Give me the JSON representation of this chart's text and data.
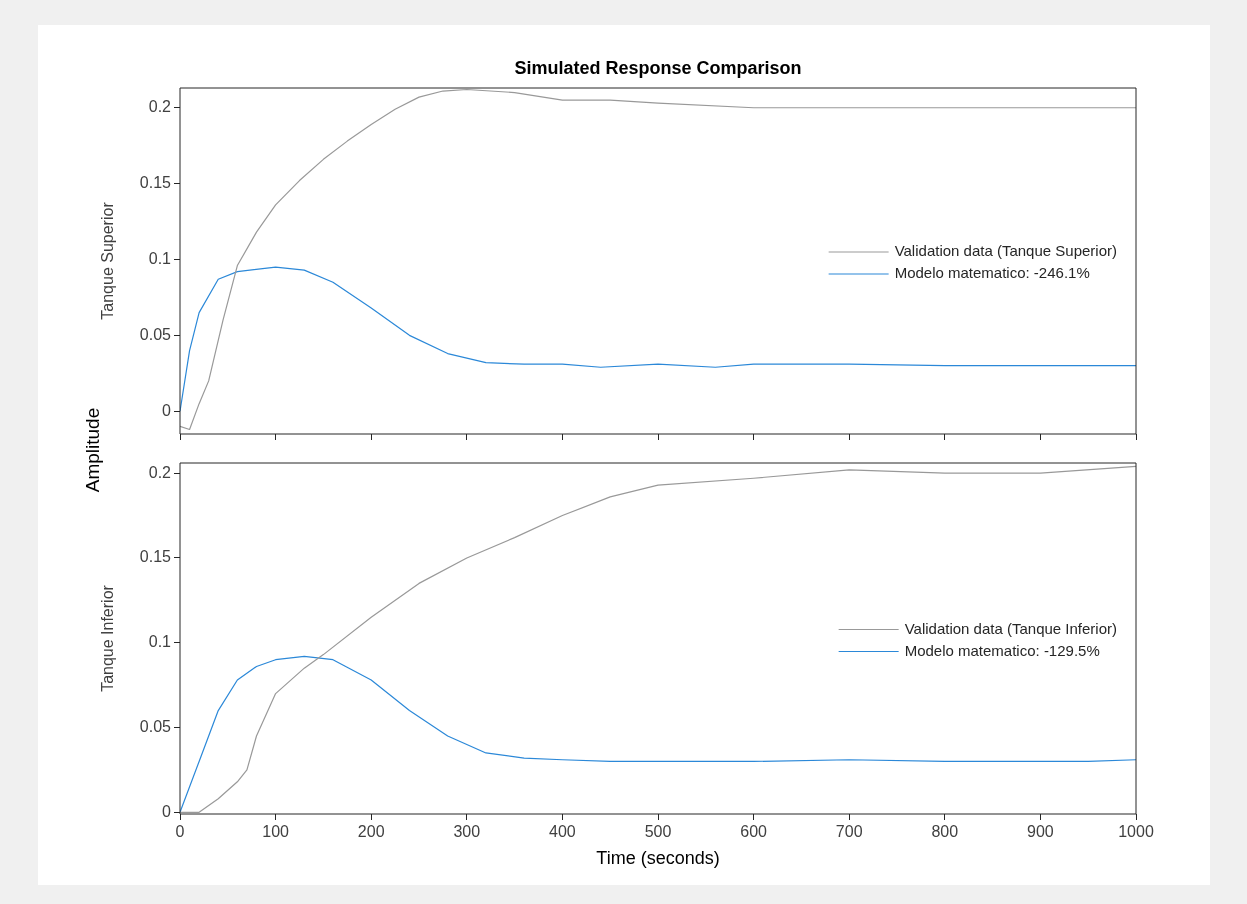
{
  "chart_data": [
    {
      "type": "line",
      "title": "Simulated Response Comparison",
      "ylabel": "Tanque Superior",
      "annotations": [
        "Amplitude"
      ],
      "xlim": [
        0,
        1000
      ],
      "xticks": [
        0,
        100,
        200,
        300,
        400,
        500,
        600,
        700,
        800,
        900,
        1000
      ],
      "ylim": [
        -0.015,
        0.213
      ],
      "yticks": [
        0,
        0.05,
        0.1,
        0.15,
        0.2
      ],
      "tick_labels": "y",
      "grid": false,
      "legend": "right",
      "series": [
        {
          "name": "Validation data (Tanque Superior)",
          "color": "#999999",
          "x": [
            0,
            10,
            20,
            30,
            45,
            60,
            80,
            100,
            125,
            150,
            175,
            200,
            225,
            250,
            275,
            300,
            350,
            400,
            450,
            500,
            600,
            700,
            800,
            900,
            1000
          ],
          "values": [
            -0.01,
            -0.012,
            0.005,
            0.02,
            0.06,
            0.096,
            0.118,
            0.136,
            0.152,
            0.166,
            0.178,
            0.189,
            0.199,
            0.207,
            0.211,
            0.212,
            0.21,
            0.205,
            0.205,
            0.203,
            0.2,
            0.2,
            0.2,
            0.2,
            0.2
          ]
        },
        {
          "name": "Modelo matematico: -246.1%",
          "color": "#2b88d8",
          "x": [
            0,
            10,
            20,
            40,
            60,
            100,
            130,
            160,
            200,
            240,
            280,
            320,
            360,
            400,
            440,
            500,
            560,
            600,
            700,
            800,
            1000
          ],
          "values": [
            0,
            0.04,
            0.065,
            0.087,
            0.092,
            0.095,
            0.093,
            0.085,
            0.068,
            0.05,
            0.038,
            0.032,
            0.031,
            0.031,
            0.029,
            0.031,
            0.029,
            0.031,
            0.031,
            0.03,
            0.03
          ]
        }
      ]
    },
    {
      "type": "line",
      "xlabel": "Time (seconds)",
      "ylabel": "Tanque Inferior",
      "xlim": [
        0,
        1000
      ],
      "xticks": [
        0,
        100,
        200,
        300,
        400,
        500,
        600,
        700,
        800,
        900,
        1000
      ],
      "ylim": [
        -0.001,
        0.206
      ],
      "yticks": [
        0,
        0.05,
        0.1,
        0.15,
        0.2
      ],
      "grid": false,
      "legend": "right",
      "series": [
        {
          "name": "Validation data (Tanque Inferior)",
          "color": "#999999",
          "x": [
            0,
            20,
            40,
            60,
            70,
            80,
            100,
            130,
            150,
            200,
            250,
            300,
            350,
            400,
            450,
            500,
            600,
            700,
            800,
            900,
            1000
          ],
          "values": [
            0,
            0,
            0.008,
            0.018,
            0.025,
            0.045,
            0.07,
            0.085,
            0.093,
            0.115,
            0.135,
            0.15,
            0.162,
            0.175,
            0.186,
            0.193,
            0.197,
            0.202,
            0.2,
            0.2,
            0.204
          ]
        },
        {
          "name": "Modelo matematico: -129.5%",
          "color": "#2b88d8",
          "x": [
            0,
            20,
            40,
            60,
            80,
            100,
            130,
            160,
            200,
            240,
            280,
            320,
            360,
            400,
            450,
            500,
            600,
            700,
            800,
            950,
            1000
          ],
          "values": [
            0,
            0.03,
            0.06,
            0.078,
            0.086,
            0.09,
            0.092,
            0.09,
            0.078,
            0.06,
            0.045,
            0.035,
            0.032,
            0.031,
            0.03,
            0.03,
            0.03,
            0.031,
            0.03,
            0.03,
            0.031
          ]
        }
      ]
    }
  ]
}
